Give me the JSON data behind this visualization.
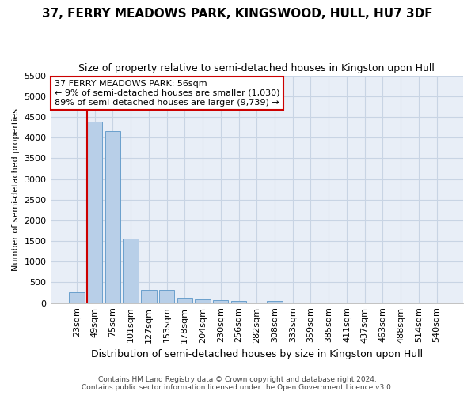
{
  "title": "37, FERRY MEADOWS PARK, KINGSWOOD, HULL, HU7 3DF",
  "subtitle": "Size of property relative to semi-detached houses in Kingston upon Hull",
  "xlabel": "Distribution of semi-detached houses by size in Kingston upon Hull",
  "ylabel": "Number of semi-detached properties",
  "categories": [
    "23sqm",
    "49sqm",
    "75sqm",
    "101sqm",
    "127sqm",
    "153sqm",
    "178sqm",
    "204sqm",
    "230sqm",
    "256sqm",
    "282sqm",
    "308sqm",
    "333sqm",
    "359sqm",
    "385sqm",
    "411sqm",
    "437sqm",
    "463sqm",
    "488sqm",
    "514sqm",
    "540sqm"
  ],
  "values": [
    270,
    4380,
    4150,
    1550,
    320,
    310,
    125,
    90,
    65,
    50,
    0,
    60,
    0,
    0,
    0,
    0,
    0,
    0,
    0,
    0,
    0
  ],
  "bar_color": "#b8cfe8",
  "bar_edge_color": "#6aa0cc",
  "grid_color": "#c8d4e4",
  "annotation_text": "37 FERRY MEADOWS PARK: 56sqm\n← 9% of semi-detached houses are smaller (1,030)\n89% of semi-detached houses are larger (9,739) →",
  "annotation_box_color": "#ffffff",
  "annotation_border_color": "#cc0000",
  "property_line_color": "#cc0000",
  "ylim": [
    0,
    5500
  ],
  "yticks": [
    0,
    500,
    1000,
    1500,
    2000,
    2500,
    3000,
    3500,
    4000,
    4500,
    5000,
    5500
  ],
  "footer_line1": "Contains HM Land Registry data © Crown copyright and database right 2024.",
  "footer_line2": "Contains public sector information licensed under the Open Government Licence v3.0.",
  "plot_bg_color": "#e8eef7",
  "fig_bg_color": "#ffffff"
}
